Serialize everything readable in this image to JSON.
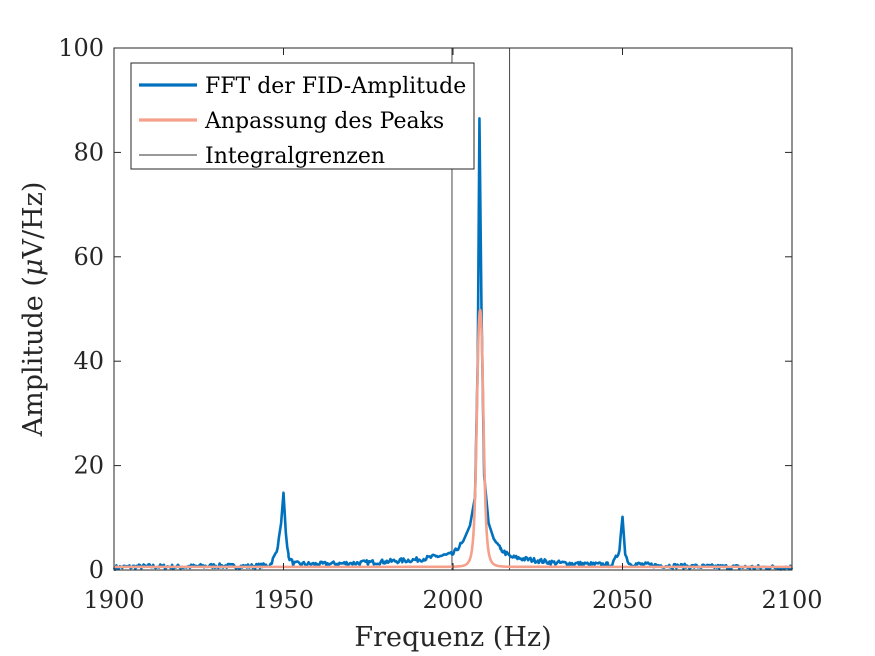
{
  "chart_data": {
    "type": "line",
    "title": "",
    "xlabel": "Frequenz (Hz)",
    "ylabel_prefix": "Amplitude (",
    "ylabel_mu": "μ",
    "ylabel_suffix": "V/Hz)",
    "xlim": [
      1900,
      2100
    ],
    "ylim": [
      0,
      100
    ],
    "xticks": [
      1900,
      1950,
      2000,
      2050,
      2100
    ],
    "yticks": [
      0,
      20,
      40,
      60,
      80,
      100
    ],
    "grid": false,
    "legend_position": "top-left",
    "series": [
      {
        "name": "FFT der FID-Amplitude",
        "color": "#0072BD",
        "points": [
          [
            1900,
            0.5
          ],
          [
            1910,
            0.7
          ],
          [
            1920,
            0.6
          ],
          [
            1930,
            0.8
          ],
          [
            1940,
            0.7
          ],
          [
            1946,
            0.9
          ],
          [
            1948,
            3.5
          ],
          [
            1949.3,
            9
          ],
          [
            1950,
            14.8
          ],
          [
            1950.7,
            7
          ],
          [
            1951.5,
            2.5
          ],
          [
            1953,
            1.2
          ],
          [
            1960,
            1.1
          ],
          [
            1970,
            1.3
          ],
          [
            1980,
            1.6
          ],
          [
            1990,
            2.0
          ],
          [
            1995,
            2.6
          ],
          [
            2000,
            3.0
          ],
          [
            2003,
            5.5
          ],
          [
            2005,
            8.5
          ],
          [
            2006.5,
            14
          ],
          [
            2007.3,
            40
          ],
          [
            2007.8,
            86.5
          ],
          [
            2008.4,
            50
          ],
          [
            2009.2,
            18
          ],
          [
            2010.5,
            9
          ],
          [
            2012,
            6
          ],
          [
            2014,
            4
          ],
          [
            2017,
            2.5
          ],
          [
            2020,
            2.2
          ],
          [
            2025,
            1.8
          ],
          [
            2030,
            1.4
          ],
          [
            2040,
            1.1
          ],
          [
            2047,
            1.0
          ],
          [
            2049,
            3.5
          ],
          [
            2050,
            10.2
          ],
          [
            2050.8,
            3
          ],
          [
            2052,
            1.2
          ],
          [
            2060,
            0.9
          ],
          [
            2070,
            0.7
          ],
          [
            2080,
            0.6
          ],
          [
            2090,
            0.5
          ],
          [
            2100,
            0.5
          ]
        ]
      },
      {
        "name": "Anpassung des Peaks",
        "color": "#F5A08A",
        "center": 2008,
        "peak": 49.8,
        "width": 1.1,
        "baseline": 0.6
      },
      {
        "name": "Integralgrenzen",
        "color": "#333333",
        "vlines": [
          1999.7,
          2016.7
        ]
      }
    ]
  }
}
